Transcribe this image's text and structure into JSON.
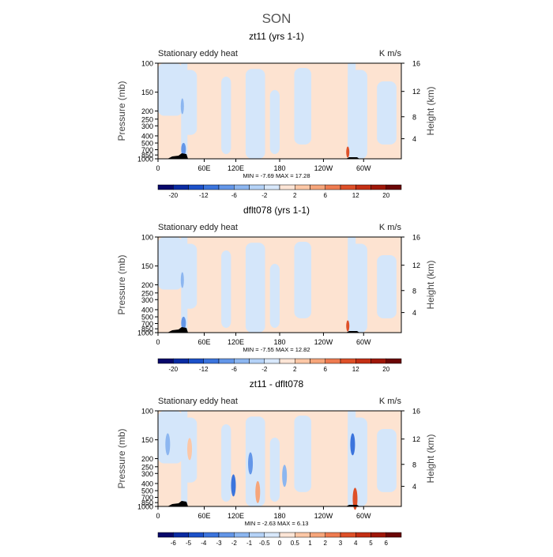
{
  "page": {
    "title": "SON"
  },
  "chart_data": [
    {
      "type": "heatmap",
      "title": "zt11 (yrs 1-1)",
      "subtitle_left": "Stationary eddy heat",
      "subtitle_right": "K m/s",
      "ylabel": "Pressure (mb)",
      "ylabel_right": "Height (km)",
      "y_ticks": [
        "100",
        "150",
        "200",
        "250",
        "300",
        "400",
        "500",
        "700",
        "850",
        "1000"
      ],
      "y_ticks_right": [
        "16",
        "12",
        "8",
        "4"
      ],
      "x_ticks": [
        "0",
        "60E",
        "120E",
        "180",
        "120W",
        "60W"
      ],
      "stats": "MIN =   -7.69   MAX =   17.28",
      "colorbar_labels": [
        "-20",
        "-12",
        "-6",
        "-2",
        "2",
        "6",
        "12",
        "20"
      ]
    },
    {
      "type": "heatmap",
      "title": "dflt078 (yrs 1-1)",
      "subtitle_left": "Stationary eddy heat",
      "subtitle_right": "K m/s",
      "ylabel": "Pressure (mb)",
      "ylabel_right": "Height (km)",
      "y_ticks": [
        "100",
        "150",
        "200",
        "250",
        "300",
        "400",
        "500",
        "700",
        "850",
        "1000"
      ],
      "y_ticks_right": [
        "16",
        "12",
        "8",
        "4"
      ],
      "x_ticks": [
        "0",
        "60E",
        "120E",
        "180",
        "120W",
        "60W"
      ],
      "stats": "MIN =   -7.55   MAX =   12.82",
      "colorbar_labels": [
        "-20",
        "-12",
        "-6",
        "-2",
        "2",
        "6",
        "12",
        "20"
      ]
    },
    {
      "type": "heatmap",
      "title": "zt11 - dflt078",
      "subtitle_left": "Stationary eddy heat",
      "subtitle_right": "K m/s",
      "ylabel": "Pressure (mb)",
      "ylabel_right": "Height (km)",
      "y_ticks": [
        "100",
        "150",
        "200",
        "250",
        "300",
        "400",
        "500",
        "700",
        "850",
        "1000"
      ],
      "y_ticks_right": [
        "16",
        "12",
        "8",
        "4"
      ],
      "x_ticks": [
        "0",
        "60E",
        "120E",
        "180",
        "120W",
        "60W"
      ],
      "stats": "MIN =   -2.63   MAX =   6.13",
      "colorbar_labels": [
        "-6",
        "-5",
        "-4",
        "-3",
        "-2",
        "-1",
        "-0.5",
        "0",
        "0.5",
        "1",
        "2",
        "3",
        "4",
        "5",
        "6"
      ]
    }
  ],
  "colors": {
    "light_blue": "#d4e6fa",
    "light_orange": "#fde3d1",
    "colorbar_16": [
      "#08086b",
      "#0a2ba3",
      "#1c51c9",
      "#3b74dd",
      "#6396e8",
      "#8cb6f0",
      "#b4d2f7",
      "#d8e8fb",
      "#fde5d6",
      "#fcc7a6",
      "#f6a57a",
      "#ee7b50",
      "#de5028",
      "#c42f14",
      "#9f1709",
      "#6b0606"
    ],
    "colorbar_16b": [
      "#08086b",
      "#0a2ba3",
      "#1c51c9",
      "#3b74dd",
      "#6396e8",
      "#8cb6f0",
      "#b4d2f7",
      "#d8e8fb",
      "#fde5d6",
      "#fcc7a6",
      "#f6a57a",
      "#ee7b50",
      "#de5028",
      "#c42f14",
      "#9f1709",
      "#6b0606"
    ]
  }
}
